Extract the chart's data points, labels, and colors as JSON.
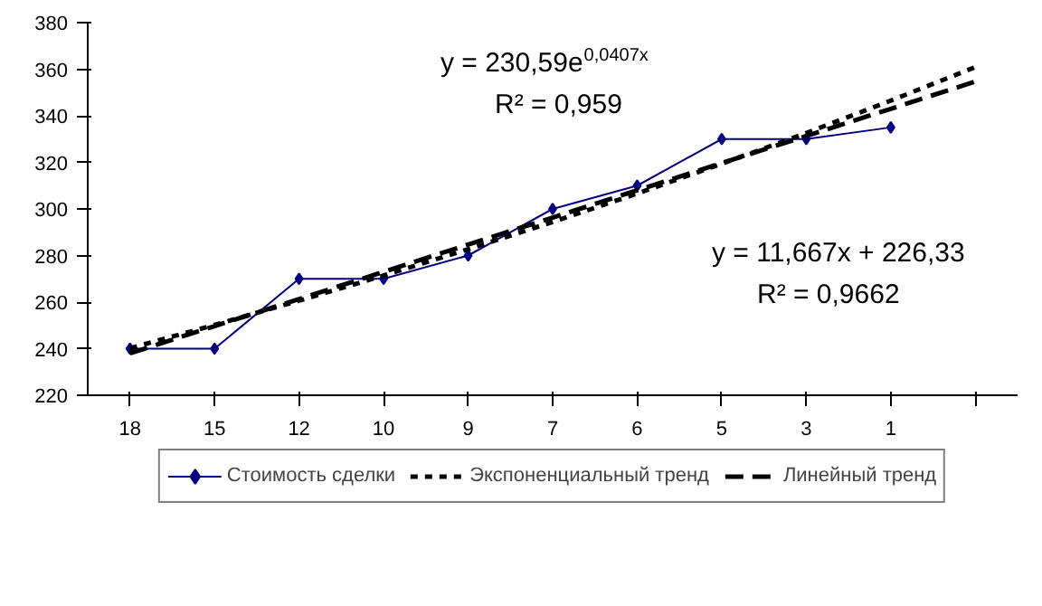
{
  "chart_data": {
    "type": "line",
    "categories": [
      "18",
      "15",
      "12",
      "10",
      "9",
      "7",
      "6",
      "5",
      "3",
      "1",
      null
    ],
    "ylim": [
      220,
      380
    ],
    "yticks": [
      220,
      240,
      260,
      280,
      300,
      320,
      340,
      360,
      380
    ],
    "grid": false,
    "legend": "bottom",
    "series": [
      {
        "name": "Стоимость сделки",
        "color": "#000080",
        "marker": "diamond",
        "line_style": "solid",
        "values": [
          240,
          240,
          270,
          270,
          280,
          300,
          310,
          330,
          330,
          335,
          null
        ]
      },
      {
        "name": "Экспоненциальный тренд",
        "color": "#000000",
        "marker": "none",
        "line_style": "dotted",
        "values": [
          240.2,
          250.2,
          260.6,
          271.4,
          282.7,
          294.4,
          306.6,
          319.4,
          332.6,
          346.5,
          360.9
        ]
      },
      {
        "name": "Линейный тренд",
        "color": "#000000",
        "marker": "none",
        "line_style": "dashed",
        "values": [
          238.0,
          249.7,
          261.3,
          273.0,
          284.7,
          296.3,
          308.0,
          319.7,
          331.3,
          343.0,
          354.7
        ]
      }
    ],
    "annotations": [
      "y = 230,59e$^{0,0407x}$",
      "R² = 0,959",
      "y = 11,667x + 226,33",
      "R² = 0,9662"
    ]
  }
}
